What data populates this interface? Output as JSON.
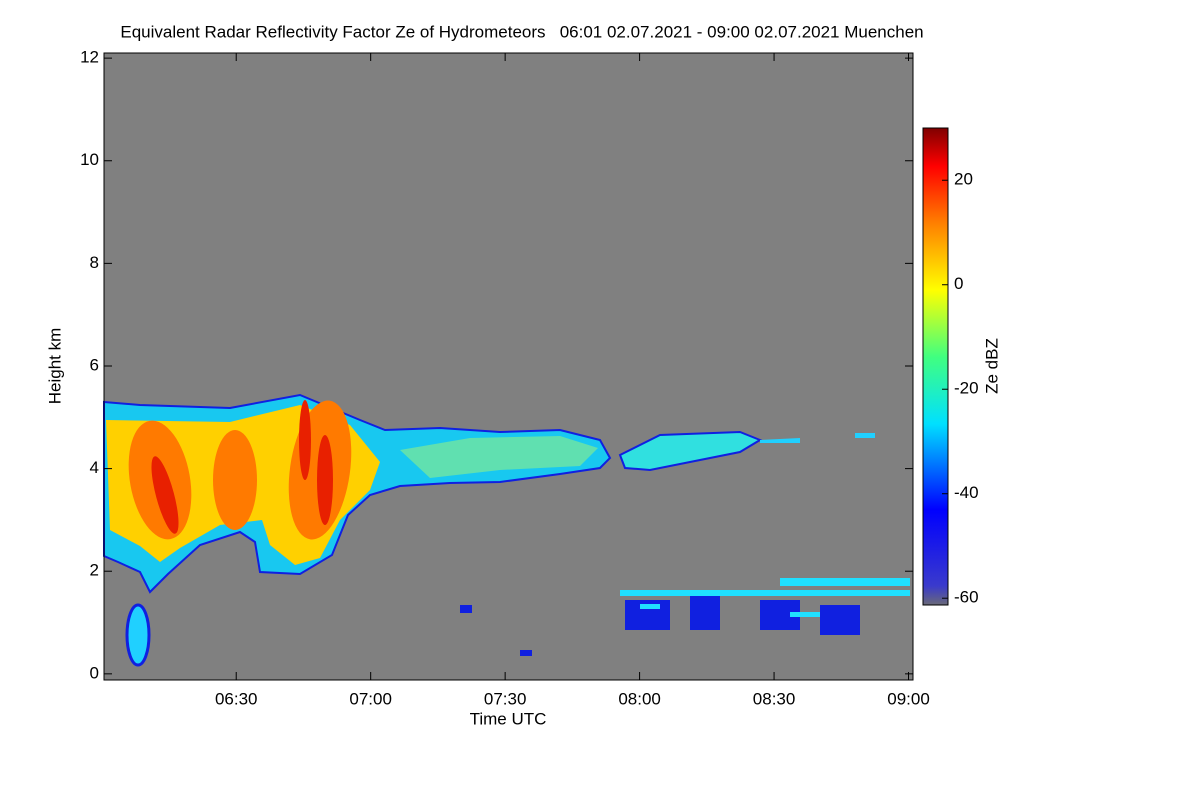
{
  "chart_data": {
    "type": "heatmap",
    "title": "Equivalent Radar Reflectivity Factor Ze of Hydrometeors   06:01 02.07.2021 - 09:00 02.07.2021 Muenchen",
    "x_label": "Time UTC",
    "y_label": "Height km",
    "colorbar_label": "Ze dBZ",
    "xlim": [
      360.5,
      541
    ],
    "xticks": [
      {
        "value": 390,
        "label": "06:30"
      },
      {
        "value": 420,
        "label": "07:00"
      },
      {
        "value": 450,
        "label": "07:30"
      },
      {
        "value": 480,
        "label": "08:00"
      },
      {
        "value": 510,
        "label": "08:30"
      },
      {
        "value": 540,
        "label": "09:00"
      }
    ],
    "ylim": [
      -0.12,
      12.1
    ],
    "yticks": [
      0,
      2,
      4,
      6,
      8,
      10,
      12
    ],
    "clim": [
      -61.3,
      30
    ],
    "cticks": [
      -60,
      -40,
      -20,
      0,
      20
    ]
  }
}
